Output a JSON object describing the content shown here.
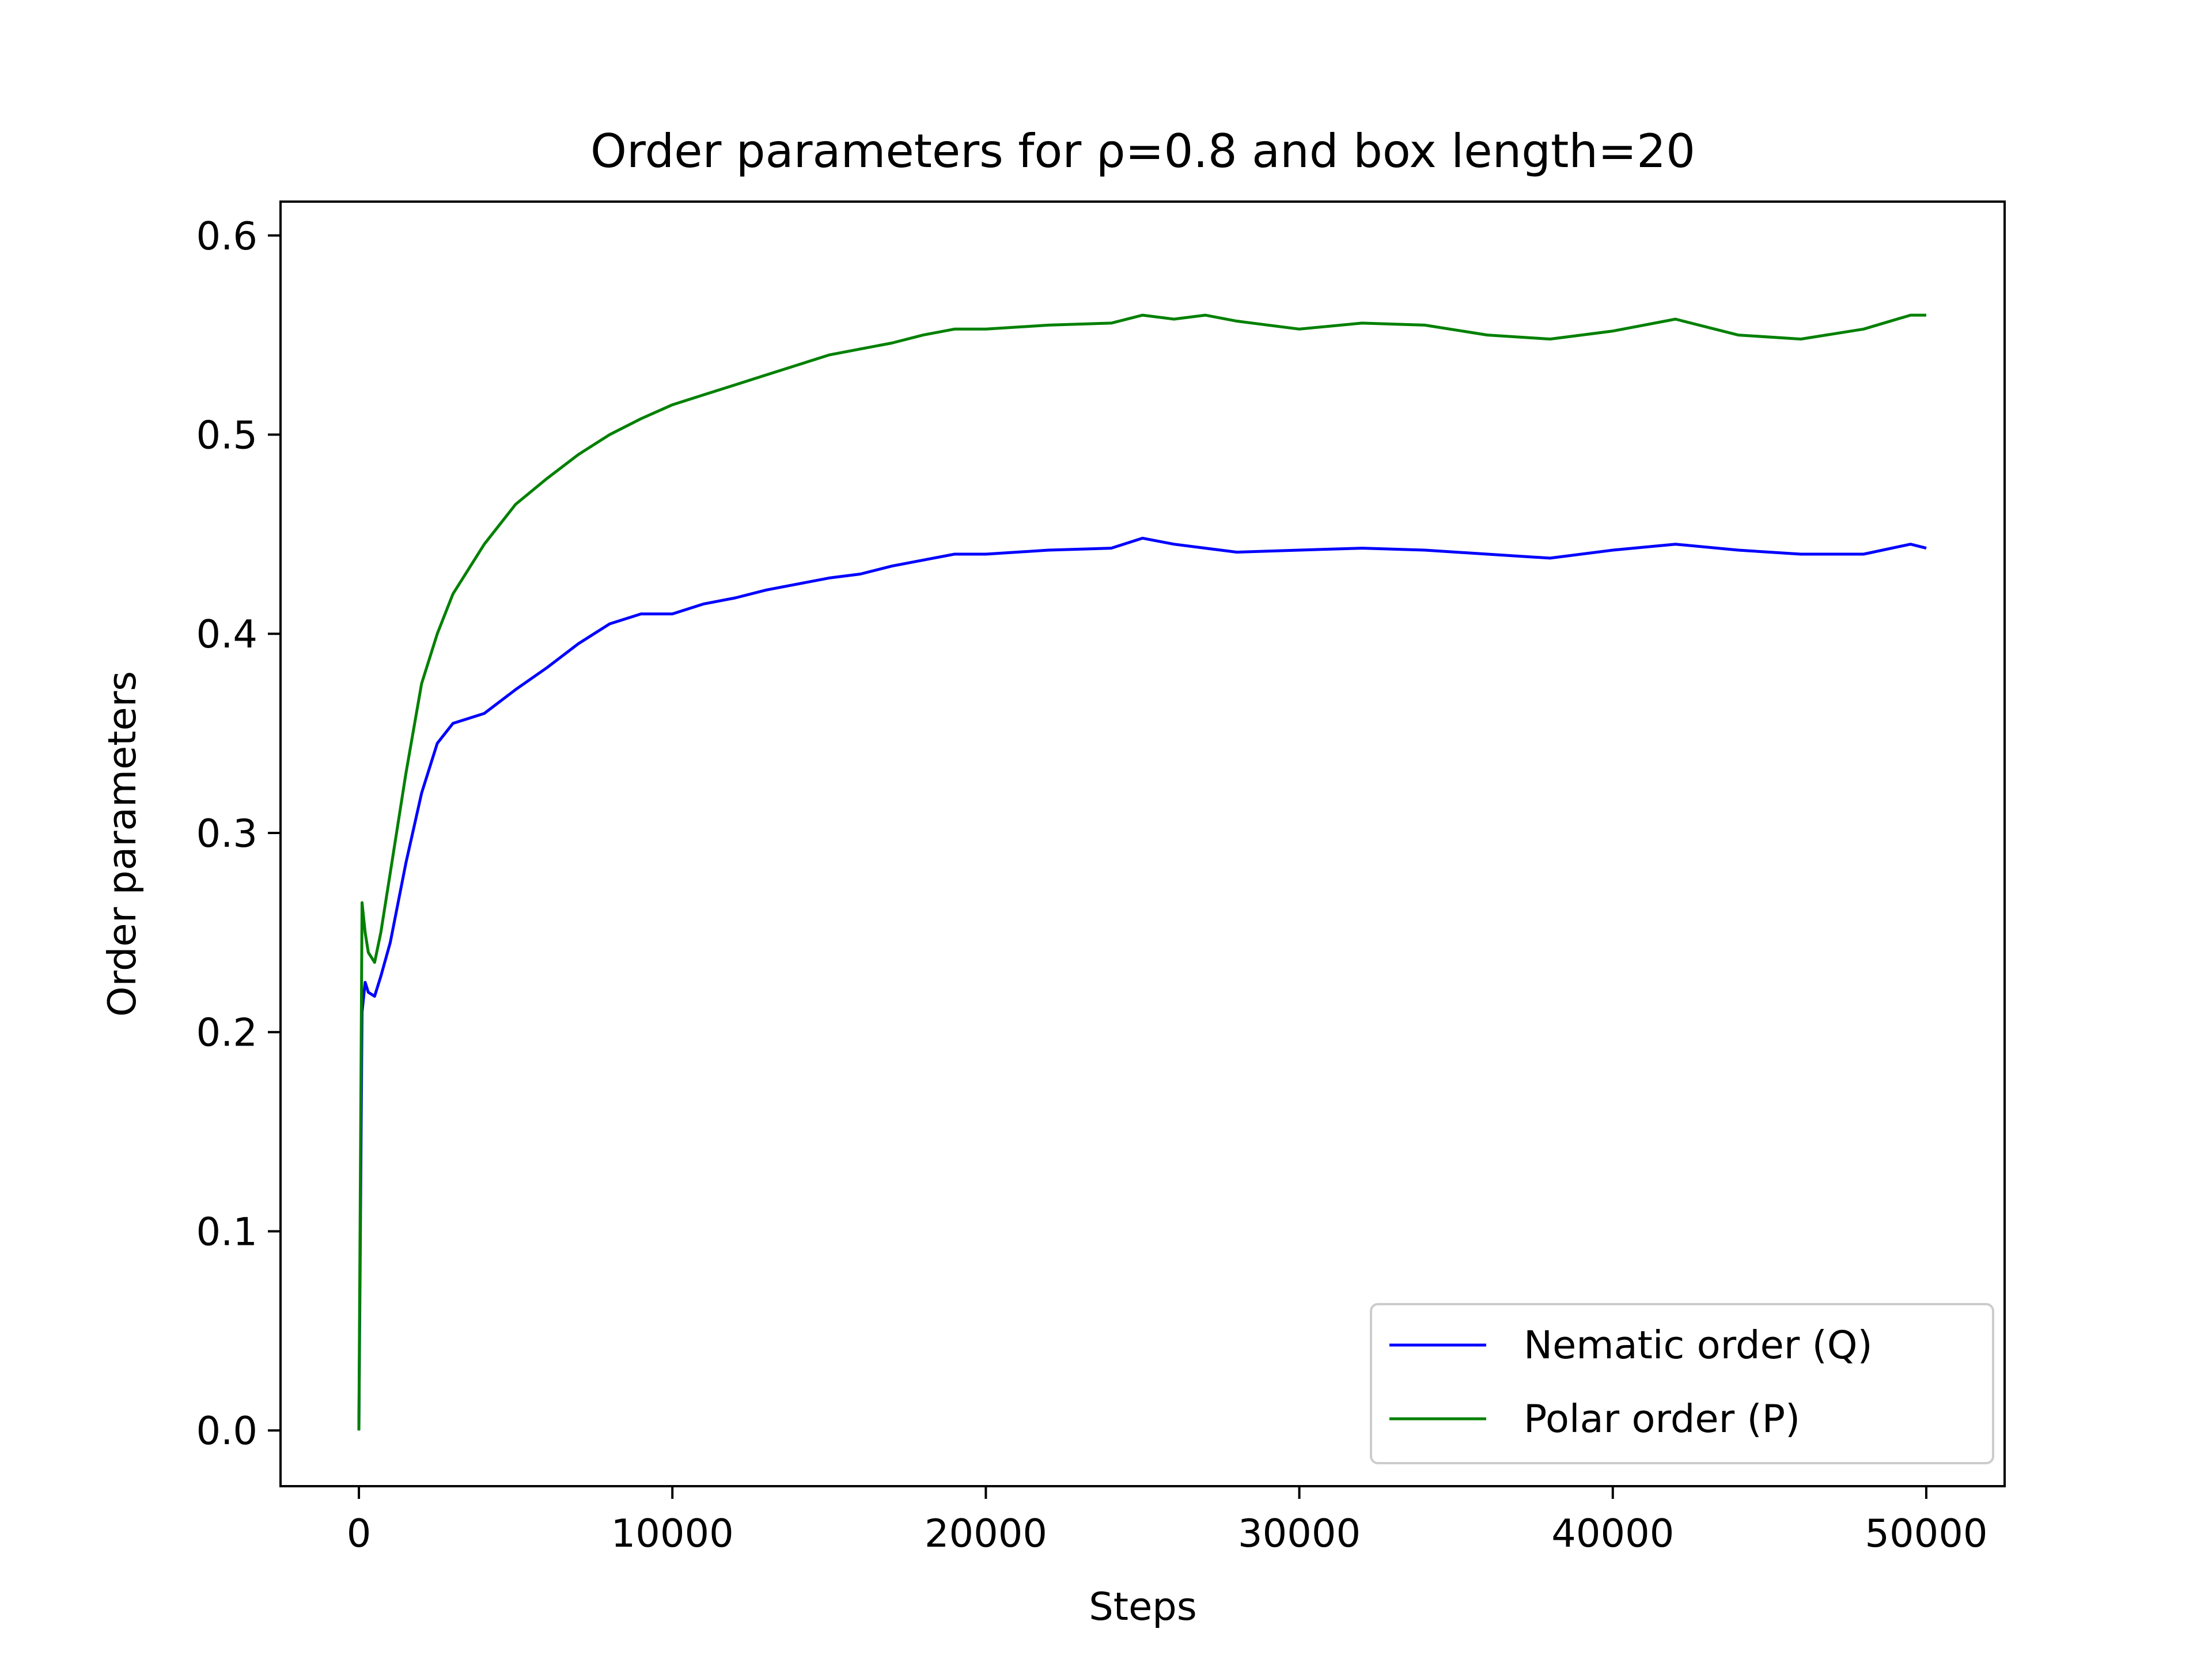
{
  "chart_data": {
    "type": "line",
    "title": "Order parameters for ρ=0.8 and box length=20",
    "xlabel": "Steps",
    "ylabel": "Order parameters",
    "xlim": [
      -2500,
      52500
    ],
    "ylim": [
      -0.028,
      0.617
    ],
    "xticks": [
      0,
      10000,
      20000,
      30000,
      40000,
      50000
    ],
    "xtick_labels": [
      "0",
      "10000",
      "20000",
      "30000",
      "40000",
      "50000"
    ],
    "yticks": [
      0.0,
      0.1,
      0.2,
      0.3,
      0.4,
      0.5,
      0.6
    ],
    "ytick_labels": [
      "0.0",
      "0.1",
      "0.2",
      "0.3",
      "0.4",
      "0.5",
      "0.6"
    ],
    "grid": false,
    "legend_position": "lower-right",
    "series": [
      {
        "name": "Nematic order (Q)",
        "color": "#0000ff",
        "x": [
          0,
          100,
          200,
          300,
          500,
          700,
          1000,
          1500,
          2000,
          2500,
          3000,
          4000,
          5000,
          6000,
          7000,
          8000,
          9000,
          10000,
          11000,
          12000,
          13000,
          14000,
          15000,
          16000,
          17000,
          18000,
          19000,
          20000,
          22000,
          24000,
          25000,
          26000,
          27000,
          28000,
          30000,
          32000,
          34000,
          36000,
          38000,
          40000,
          42000,
          44000,
          46000,
          48000,
          49500,
          50000
        ],
        "y": [
          0.0,
          0.21,
          0.225,
          0.22,
          0.218,
          0.228,
          0.245,
          0.285,
          0.32,
          0.345,
          0.355,
          0.36,
          0.372,
          0.383,
          0.395,
          0.405,
          0.41,
          0.41,
          0.415,
          0.418,
          0.422,
          0.425,
          0.428,
          0.43,
          0.434,
          0.437,
          0.44,
          0.44,
          0.442,
          0.443,
          0.448,
          0.445,
          0.443,
          0.441,
          0.442,
          0.443,
          0.442,
          0.44,
          0.438,
          0.442,
          0.445,
          0.442,
          0.44,
          0.44,
          0.445,
          0.443
        ]
      },
      {
        "name": "Polar order (P)",
        "color": "#008000",
        "x": [
          0,
          100,
          200,
          300,
          500,
          700,
          1000,
          1500,
          2000,
          2500,
          3000,
          4000,
          5000,
          6000,
          7000,
          8000,
          9000,
          10000,
          11000,
          12000,
          13000,
          14000,
          15000,
          16000,
          17000,
          18000,
          19000,
          20000,
          22000,
          24000,
          25000,
          26000,
          27000,
          28000,
          30000,
          32000,
          34000,
          36000,
          38000,
          40000,
          42000,
          44000,
          46000,
          48000,
          49500,
          50000
        ],
        "y": [
          0.0,
          0.265,
          0.25,
          0.24,
          0.235,
          0.25,
          0.28,
          0.33,
          0.375,
          0.4,
          0.42,
          0.445,
          0.465,
          0.478,
          0.49,
          0.5,
          0.508,
          0.515,
          0.52,
          0.525,
          0.53,
          0.535,
          0.54,
          0.543,
          0.546,
          0.55,
          0.553,
          0.553,
          0.555,
          0.556,
          0.56,
          0.558,
          0.56,
          0.557,
          0.553,
          0.556,
          0.555,
          0.55,
          0.548,
          0.552,
          0.558,
          0.55,
          0.548,
          0.553,
          0.56,
          0.56
        ]
      }
    ]
  }
}
